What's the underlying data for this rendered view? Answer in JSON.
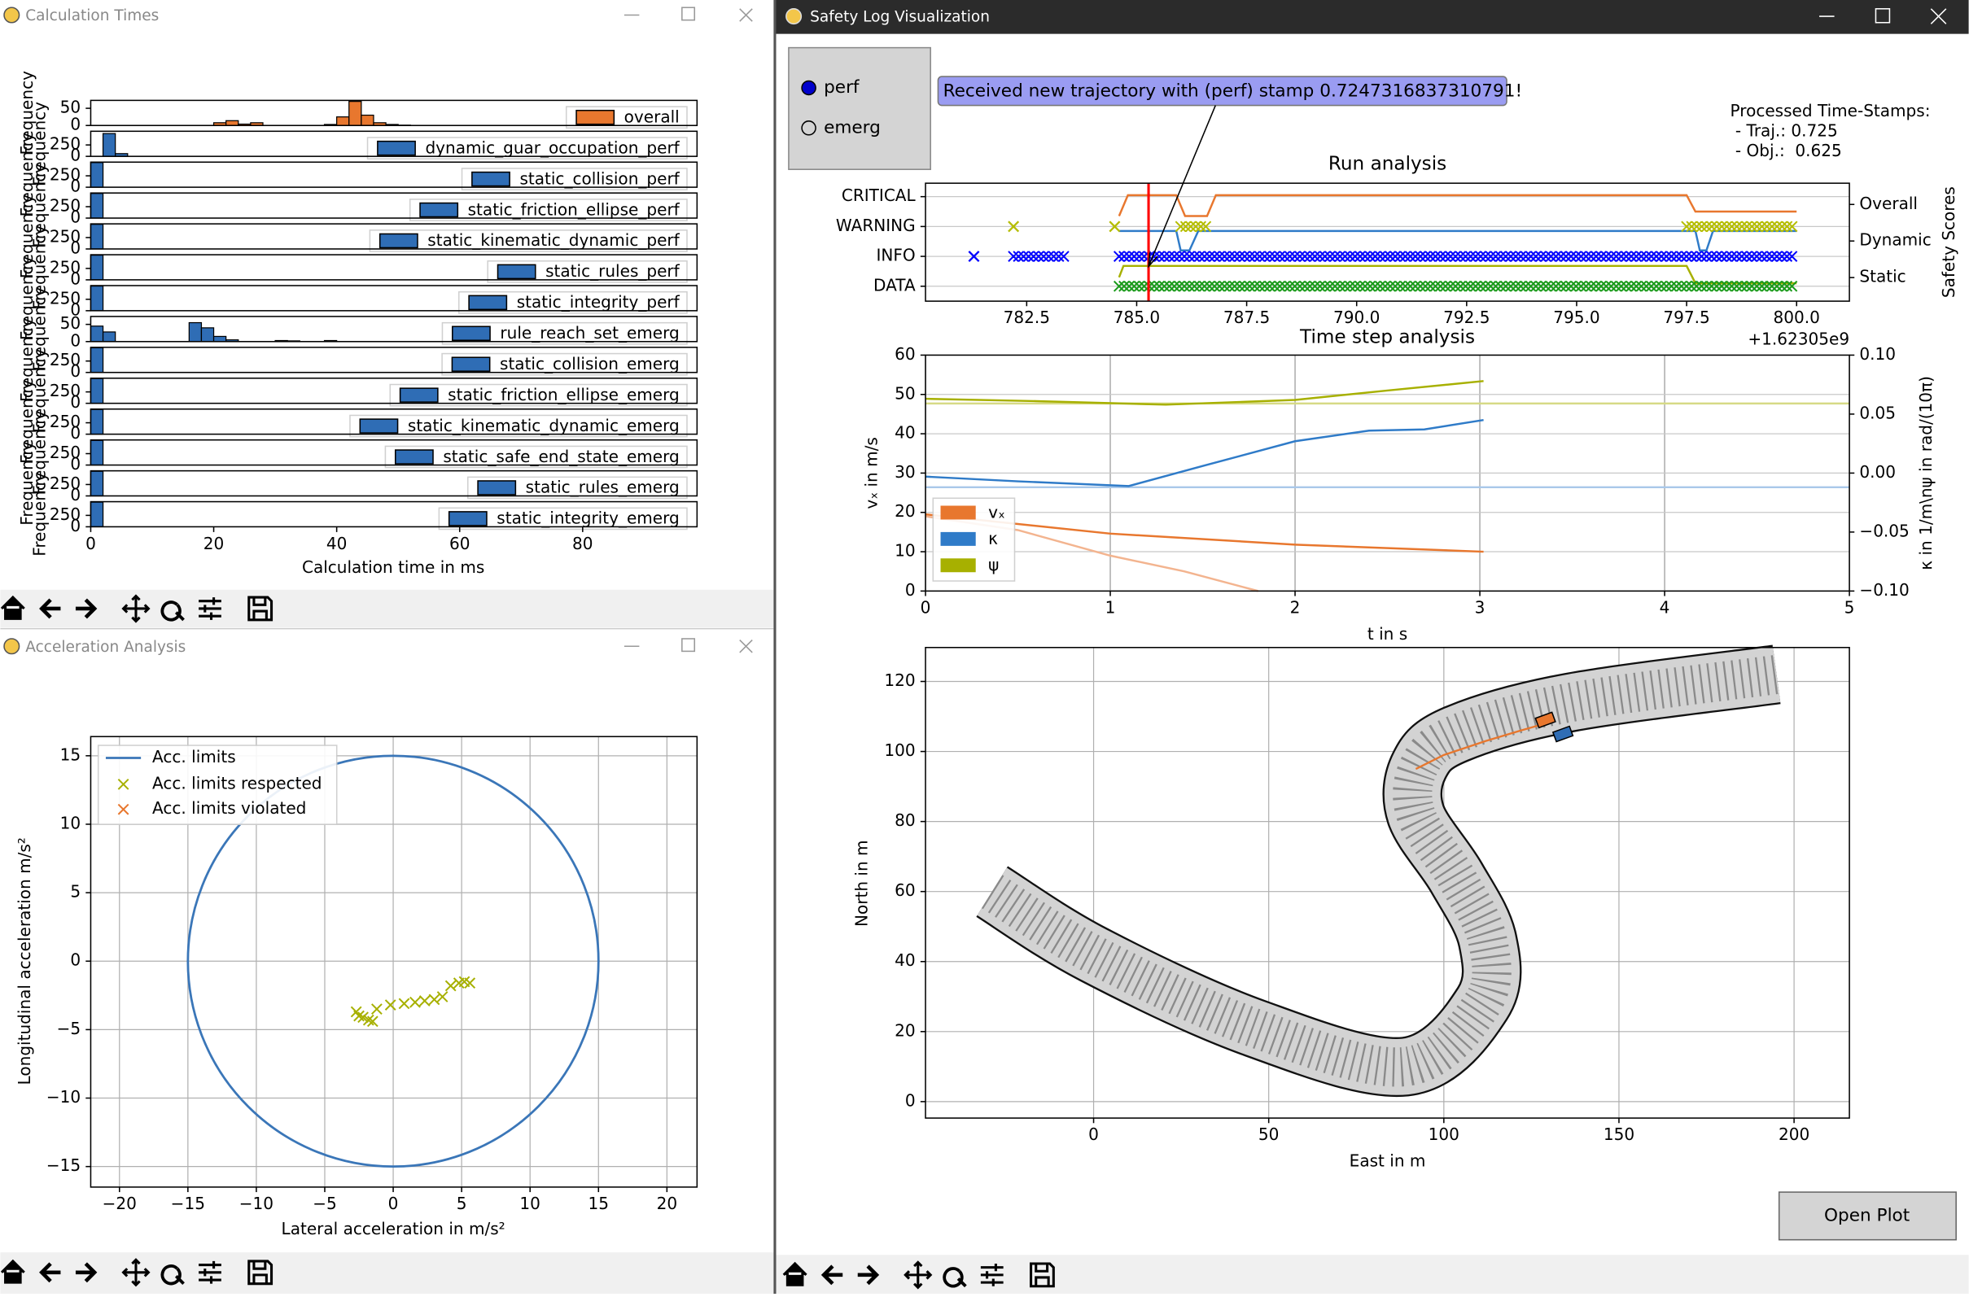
{
  "calc_window": {
    "title": "Calculation Times",
    "chart": {
      "type": "histogram-stack",
      "xlabel": "Calculation time in ms",
      "ylabel": "Frequency",
      "xlim": [
        0,
        98.6
      ],
      "xticks": [
        0,
        20,
        40,
        60,
        80
      ],
      "panels": [
        {
          "label": "overall",
          "color": "#e8772e",
          "ylim": [
            0,
            73
          ],
          "yticks": [
            0,
            50
          ],
          "bins": [
            20,
            22,
            24,
            26,
            28,
            30,
            32,
            34,
            36,
            38,
            40,
            42,
            44,
            46,
            48,
            50,
            52
          ],
          "counts": [
            8,
            14,
            4,
            8,
            0,
            0,
            0,
            0,
            0,
            3,
            25,
            70,
            30,
            8,
            3,
            1
          ]
        },
        {
          "label": "dynamic_guar_occupation_perf",
          "color": "#2f6db5",
          "ylim": [
            0,
            550
          ],
          "yticks": [
            0,
            250
          ],
          "bins": [
            2,
            4,
            6
          ],
          "counts": [
            500,
            60
          ]
        },
        {
          "label": "static_collision_perf",
          "color": "#2f6db5",
          "ylim": [
            0,
            550
          ],
          "yticks": [
            0,
            250
          ],
          "bins": [
            0,
            2
          ],
          "counts": [
            540
          ]
        },
        {
          "label": "static_friction_ellipse_perf",
          "color": "#2f6db5",
          "ylim": [
            0,
            550
          ],
          "yticks": [
            0,
            250
          ],
          "bins": [
            0,
            2
          ],
          "counts": [
            540
          ]
        },
        {
          "label": "static_kinematic_dynamic_perf",
          "color": "#2f6db5",
          "ylim": [
            0,
            550
          ],
          "yticks": [
            0,
            250
          ],
          "bins": [
            0,
            2
          ],
          "counts": [
            540
          ]
        },
        {
          "label": "static_rules_perf",
          "color": "#2f6db5",
          "ylim": [
            0,
            550
          ],
          "yticks": [
            0,
            250
          ],
          "bins": [
            0,
            2
          ],
          "counts": [
            540
          ]
        },
        {
          "label": "static_integrity_perf",
          "color": "#2f6db5",
          "ylim": [
            0,
            550
          ],
          "yticks": [
            0,
            250
          ],
          "bins": [
            0,
            2
          ],
          "counts": [
            540
          ]
        },
        {
          "label": "rule_reach_set_emerg",
          "color": "#2f6db5",
          "ylim": [
            0,
            73
          ],
          "yticks": [
            0,
            50
          ],
          "bins": [
            0,
            2,
            4,
            6,
            8,
            10,
            12,
            14,
            16,
            18,
            20,
            22,
            24,
            26,
            28,
            30,
            32,
            34,
            36,
            38,
            40,
            42
          ],
          "counts": [
            45,
            28,
            0,
            0,
            0,
            0,
            0,
            0,
            55,
            40,
            15,
            5,
            0,
            0,
            0,
            3,
            2,
            0,
            0,
            3,
            0
          ]
        },
        {
          "label": "static_collision_emerg",
          "color": "#2f6db5",
          "ylim": [
            0,
            550
          ],
          "yticks": [
            0,
            250
          ],
          "bins": [
            0,
            2
          ],
          "counts": [
            540
          ]
        },
        {
          "label": "static_friction_ellipse_emerg",
          "color": "#2f6db5",
          "ylim": [
            0,
            550
          ],
          "yticks": [
            0,
            250
          ],
          "bins": [
            0,
            2
          ],
          "counts": [
            540
          ]
        },
        {
          "label": "static_kinematic_dynamic_emerg",
          "color": "#2f6db5",
          "ylim": [
            0,
            550
          ],
          "yticks": [
            0,
            250
          ],
          "bins": [
            0,
            2
          ],
          "counts": [
            540
          ]
        },
        {
          "label": "static_safe_end_state_emerg",
          "color": "#2f6db5",
          "ylim": [
            0,
            550
          ],
          "yticks": [
            0,
            250
          ],
          "bins": [
            0,
            2
          ],
          "counts": [
            540
          ]
        },
        {
          "label": "static_rules_emerg",
          "color": "#2f6db5",
          "ylim": [
            0,
            550
          ],
          "yticks": [
            0,
            250
          ],
          "bins": [
            0,
            2
          ],
          "counts": [
            540
          ]
        },
        {
          "label": "static_integrity_emerg",
          "color": "#2f6db5",
          "ylim": [
            0,
            550
          ],
          "yticks": [
            0,
            250
          ],
          "bins": [
            0,
            2
          ],
          "counts": [
            540
          ]
        }
      ]
    }
  },
  "accel_window": {
    "title": "Acceleration Analysis",
    "chart": {
      "type": "scatter",
      "xlabel": "Lateral acceleration in m/s²",
      "ylabel": "Longitudinal acceleration m/s²",
      "xlim": [
        -22.1,
        22.2
      ],
      "ylim": [
        -16.5,
        16.4
      ],
      "xticks": [
        {
          "value": -20,
          "label": "−20"
        },
        {
          "value": -15,
          "label": "−15"
        },
        {
          "value": -10,
          "label": "−10"
        },
        {
          "value": -5,
          "label": "−5"
        },
        0,
        5,
        10,
        15,
        20
      ],
      "yticks": [
        {
          "value": -15,
          "label": "−15"
        },
        {
          "value": -10,
          "label": "−10"
        },
        {
          "value": -5,
          "label": "−5"
        },
        0,
        5,
        10,
        15
      ],
      "grid": true,
      "legend": "upper left",
      "limit": {
        "name": "Acc. limits",
        "color": "#3a76b8",
        "radius": 15
      },
      "respected": {
        "name": "Acc. limits respected",
        "color": "#a7b000",
        "x": [
          -2.7,
          -2.5,
          -2.2,
          -1.8,
          -1.5,
          -1.2,
          -0.2,
          0.8,
          1.6,
          2.3,
          3,
          3.6,
          4.2,
          4.8,
          5.2,
          5.6
        ],
        "y": [
          -3.7,
          -4,
          -4.1,
          -4.3,
          -4.4,
          -3.5,
          -3.2,
          -3.1,
          -3,
          -2.9,
          -2.8,
          -2.6,
          -1.8,
          -1.6,
          -1.5,
          -1.6
        ]
      },
      "violated": {
        "name": "Acc. limits violated",
        "color": "#e8772e"
      }
    }
  },
  "safety_window": {
    "title": "Safety Log Visualization",
    "radio": {
      "options": [
        "perf",
        "emerg"
      ],
      "selected": 0
    },
    "annotation": "Received new trajectory with (perf) stamp 0.7247316837310791!",
    "processed": {
      "heading": "Processed Time-Stamps:",
      "lines": [
        " - Traj.: 0.725",
        " - Obj.:  0.625"
      ]
    },
    "button": "Open Plot",
    "run_analysis": {
      "type": "step-line",
      "title": "Run analysis",
      "y2label": "Safety Scores",
      "x_offset_label": "+1.62305e9",
      "grid": true,
      "xlim": [
        780.2,
        801.2
      ],
      "xticks": [
        782.5,
        {
          "value": 785,
          "label": "785.0"
        },
        787.5,
        {
          "value": 790,
          "label": "790.0"
        },
        792.5,
        {
          "value": 795,
          "label": "795.0"
        },
        797.5,
        {
          "value": 800,
          "label": "800.0"
        }
      ],
      "ylim": [
        -0.5,
        3.45
      ],
      "yticks": [
        {
          "value": 0,
          "label": "DATA"
        },
        {
          "value": 1,
          "label": "INFO"
        },
        {
          "value": 2,
          "label": "WARNING"
        },
        {
          "value": 3,
          "label": "CRITICAL"
        }
      ],
      "y2lim": [
        0,
        1
      ],
      "y2ticks": [
        {
          "value": 0.2,
          "label": "Static"
        },
        {
          "value": 0.51,
          "label": "Dynamic"
        },
        {
          "value": 0.82,
          "label": "Overall"
        }
      ],
      "cursor": 785.27,
      "cursor_color": "#ff0000",
      "series": [
        {
          "color": "#e8772e",
          "x": [
            784.6,
            784.8,
            785.9,
            786.1,
            786.6,
            786.8,
            797.5,
            797.7,
            800
          ],
          "values": [
            2.35,
            3.05,
            3.05,
            2.35,
            2.35,
            3.05,
            3.05,
            2.5,
            2.5
          ]
        },
        {
          "color": "#2f7bc8",
          "x": [
            784.6,
            785.9,
            786,
            786.2,
            786.4,
            797.7,
            797.8,
            797.95,
            798.1,
            800
          ],
          "values": [
            1.85,
            1.85,
            1.2,
            1.2,
            1.85,
            1.85,
            1.2,
            1.2,
            1.85,
            1.85
          ]
        },
        {
          "color": "#a7b000",
          "x": [
            784.6,
            784.7,
            797.5,
            797.7,
            800
          ],
          "values": [
            0.3,
            0.68,
            0.68,
            0.1,
            0.1
          ]
        }
      ],
      "markers": [
        {
          "level": 2,
          "color": "#b5bd00",
          "x": [
            782.2,
            784.5
          ],
          "ranges": [
            [
              786,
              786.6
            ],
            [
              797.5,
              800
            ]
          ]
        },
        {
          "level": 1,
          "color": "#0000ff",
          "x": [
            781.3
          ],
          "ranges": [
            [
              782.2,
              783.4
            ],
            [
              784.6,
              800
            ]
          ]
        },
        {
          "level": 0,
          "color": "#1a9a1a",
          "ranges": [
            [
              784.6,
              800
            ]
          ]
        }
      ]
    },
    "time_step": {
      "type": "line",
      "title": "Time step analysis",
      "xlabel": "t in s",
      "ylabel": "vₓ in m/s",
      "y2label": "κ in 1/m\\nψ in rad/(10π)",
      "grid": true,
      "legend": "lower left",
      "xlim": [
        0,
        5
      ],
      "xticks": [
        0,
        1,
        2,
        3,
        4,
        5
      ],
      "ylim": [
        0,
        60
      ],
      "yticks": [
        0,
        10,
        20,
        30,
        40,
        50,
        60
      ],
      "y2lim": [
        -0.1,
        0.1
      ],
      "y2ticks": [
        {
          "value": -0.1,
          "label": "−0.10"
        },
        {
          "value": -0.05,
          "label": "−0.05"
        },
        {
          "value": 0,
          "label": "0.00"
        },
        {
          "value": 0.05,
          "label": "0.05"
        },
        {
          "value": 0.1,
          "label": "0.10"
        }
      ],
      "series": [
        {
          "name": "vₓ",
          "color": "#e8772e",
          "x": [
            0,
            1,
            2,
            3.02
          ],
          "values": [
            19.5,
            14.6,
            11.8,
            10
          ]
        },
        {
          "name": "κ",
          "color": "#2f7bc8",
          "axis": "y2",
          "x": [
            0,
            0.5,
            1.1,
            1.5,
            2,
            2.4,
            2.7,
            3.02
          ],
          "values": [
            -0.003,
            -0.007,
            -0.011,
            0.006,
            0.027,
            0.036,
            0.037,
            0.045
          ]
        },
        {
          "name": "ψ",
          "color": "#a7b000",
          "axis": "y2",
          "x": [
            0,
            0.6,
            1.3,
            2,
            2.5,
            3.02
          ],
          "values": [
            0.063,
            0.061,
            0.058,
            0.062,
            0.07,
            0.078
          ]
        }
      ],
      "predictions": [
        {
          "color": "#f3b48f",
          "x": [
            0,
            0.5,
            1,
            1.4,
            1.8
          ],
          "values": [
            19,
            15.5,
            9,
            5,
            0
          ]
        },
        {
          "color": "#a9c8ea",
          "axis": "y2",
          "x": [
            0,
            5
          ],
          "values": [
            -0.012,
            -0.012
          ]
        },
        {
          "color": "#d6da86",
          "axis": "y2",
          "x": [
            0,
            5
          ],
          "values": [
            0.059,
            0.059
          ]
        }
      ]
    },
    "map": {
      "type": "map",
      "xlabel": "East in m",
      "ylabel": "North in m",
      "grid": true,
      "xlim": [
        -48,
        215.8
      ],
      "xticks": [
        0,
        50,
        100,
        150,
        200
      ],
      "ylim": [
        -4.7,
        129.7
      ],
      "yticks": [
        0,
        20,
        40,
        60,
        80,
        100,
        120
      ],
      "road": {
        "x": [
          -29,
          0,
          46,
          89,
          111,
          112.5,
          103.6,
          92,
          93,
          103.6,
          136,
          195
        ],
        "y": [
          60,
          42,
          21,
          10,
          28,
          46,
          64,
          82,
          96,
          105,
          114,
          122
        ],
        "width": 16
      },
      "trajectory": {
        "color": "#e8772e",
        "x": [
          92,
          100,
          112,
          122,
          129
        ],
        "y": [
          95,
          99,
          103,
          106,
          108
        ]
      },
      "vehicles": [
        {
          "color": "#e8772e",
          "x": [
            129
          ],
          "y": [
            109
          ]
        },
        {
          "color": "#2f6db5",
          "x": [
            134
          ],
          "y": [
            105
          ]
        }
      ]
    }
  }
}
